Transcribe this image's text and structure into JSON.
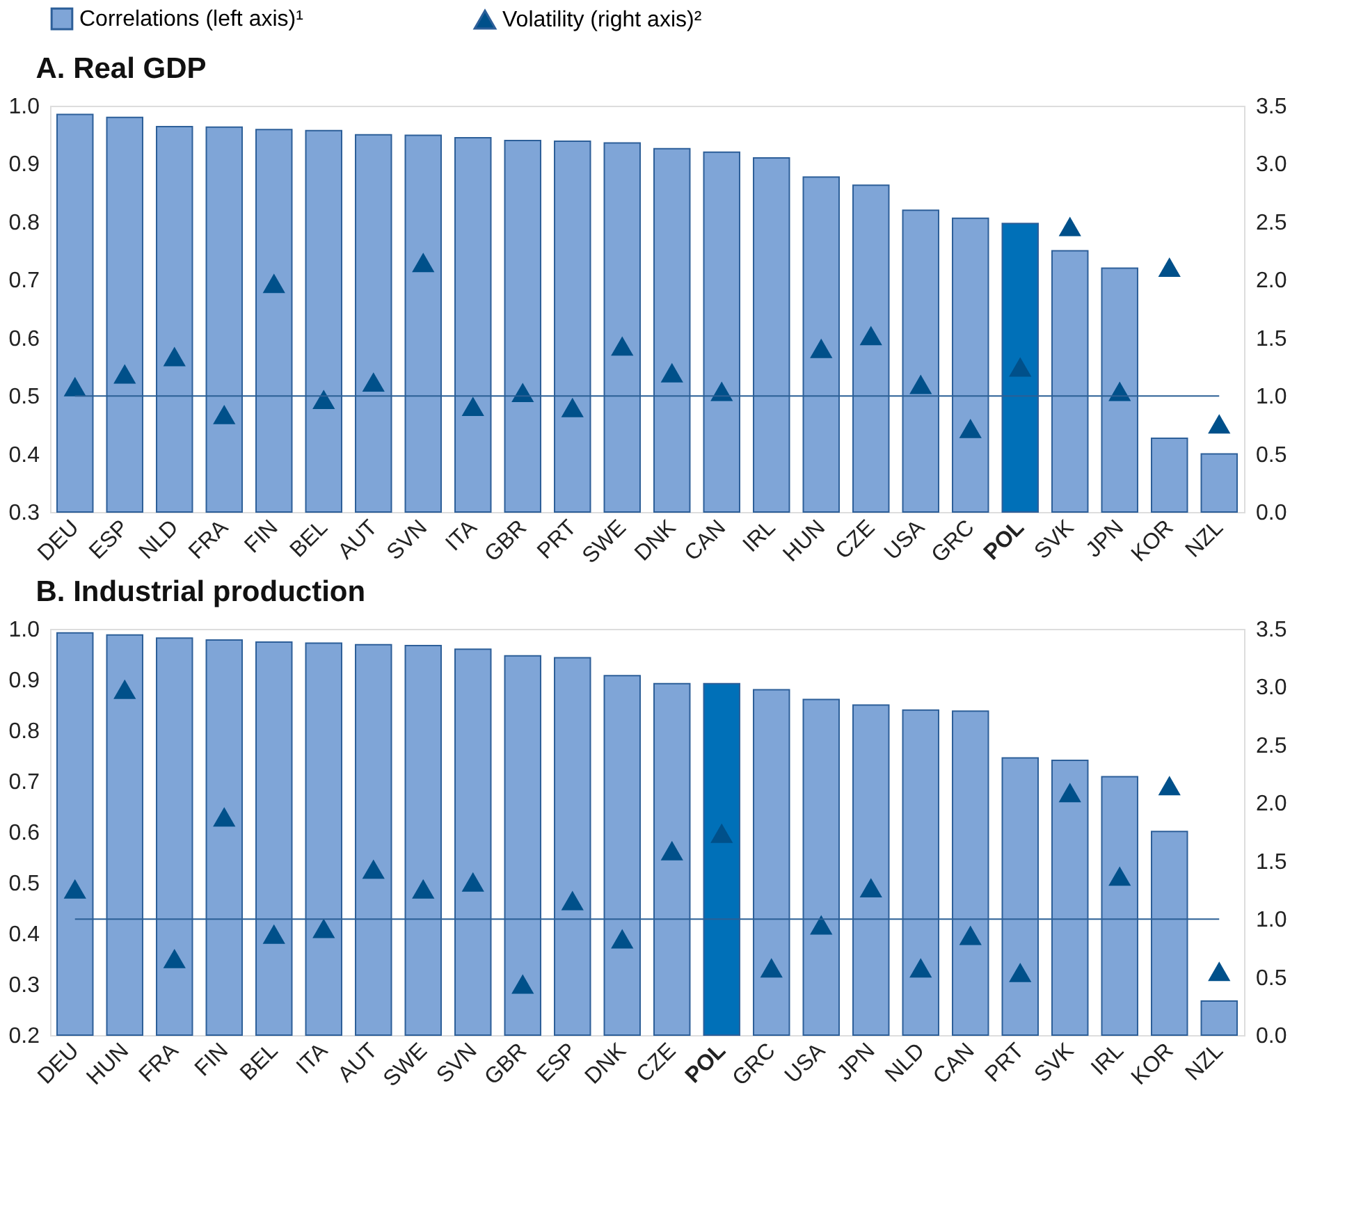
{
  "chart_data": [
    {
      "type": "bar",
      "title": "A.  Real GDP",
      "legend": "top",
      "grid": false,
      "categories": [
        "DEU",
        "ESP",
        "NLD",
        "FRA",
        "FIN",
        "BEL",
        "AUT",
        "SVN",
        "ITA",
        "GBR",
        "PRT",
        "SWE",
        "DNK",
        "CAN",
        "IRL",
        "HUN",
        "CZE",
        "USA",
        "GRC",
        "POL",
        "SVK",
        "JPN",
        "KOR",
        "NZL"
      ],
      "series": [
        {
          "name": "Correlations (left axis)¹",
          "type": "bar",
          "color": "#7fa5d7",
          "colors": [
            "#7fa5d7",
            "#7fa5d7",
            "#7fa5d7",
            "#7fa5d7",
            "#7fa5d7",
            "#7fa5d7",
            "#7fa5d7",
            "#7fa5d7",
            "#7fa5d7",
            "#7fa5d7",
            "#7fa5d7",
            "#7fa5d7",
            "#7fa5d7",
            "#7fa5d7",
            "#7fa5d7",
            "#7fa5d7",
            "#7fa5d7",
            "#7fa5d7",
            "#7fa5d7",
            "#0070b8",
            "#7fa5d7",
            "#7fa5d7",
            "#7fa5d7",
            "#7fa5d7"
          ],
          "values": [
            0.985,
            0.98,
            0.964,
            0.963,
            0.959,
            0.957,
            0.95,
            0.949,
            0.945,
            0.94,
            0.939,
            0.936,
            0.926,
            0.92,
            0.91,
            0.877,
            0.863,
            0.82,
            0.806,
            0.797,
            0.75,
            0.72,
            0.427,
            0.4
          ]
        },
        {
          "name": "Volatility (right axis)²",
          "type": "scatter",
          "marker": "triangle",
          "axis": "y2",
          "color": "#00508a",
          "values": [
            1.08,
            1.19,
            1.34,
            0.84,
            1.97,
            0.97,
            1.12,
            2.15,
            0.91,
            1.03,
            0.9,
            1.43,
            1.2,
            1.04,
            null,
            1.41,
            1.52,
            1.1,
            0.72,
            1.25,
            2.46,
            1.04,
            2.11,
            0.76
          ]
        }
      ],
      "ylim": [
        0.3,
        1.0
      ],
      "yticks": [
        0.3,
        0.4,
        0.5,
        0.6,
        0.7,
        0.8,
        0.9,
        {
          "value": 1.0,
          "label": "1.0"
        }
      ],
      "y2lim": [
        0,
        3.5
      ],
      "y2ticks": [
        {
          "value": 0,
          "label": "0.0"
        },
        0.5,
        {
          "value": 1,
          "label": "1.0"
        },
        1.5,
        {
          "value": 2,
          "label": "2.0"
        },
        2.5,
        {
          "value": 3,
          "label": "3.0"
        },
        3.5
      ],
      "ref_lines": [
        {
          "axis": "y2",
          "value": 1.0,
          "color": "#2b5f95"
        }
      ]
    },
    {
      "type": "bar",
      "title": "B.  Industrial production",
      "legend": false,
      "grid": false,
      "categories": [
        "DEU",
        "HUN",
        "FRA",
        "FIN",
        "BEL",
        "ITA",
        "AUT",
        "SWE",
        "SVN",
        "GBR",
        "ESP",
        "DNK",
        "CZE",
        "POL",
        "GRC",
        "USA",
        "JPN",
        "NLD",
        "CAN",
        "PRT",
        "SVK",
        "IRL",
        "KOR",
        "NZL"
      ],
      "series": [
        {
          "type": "bar",
          "color": "#7fa5d7",
          "colors": [
            "#7fa5d7",
            "#7fa5d7",
            "#7fa5d7",
            "#7fa5d7",
            "#7fa5d7",
            "#7fa5d7",
            "#7fa5d7",
            "#7fa5d7",
            "#7fa5d7",
            "#7fa5d7",
            "#7fa5d7",
            "#7fa5d7",
            "#7fa5d7",
            "#0070b8",
            "#7fa5d7",
            "#7fa5d7",
            "#7fa5d7",
            "#7fa5d7",
            "#7fa5d7",
            "#7fa5d7",
            "#7fa5d7",
            "#7fa5d7",
            "#7fa5d7",
            "#7fa5d7"
          ],
          "values": [
            0.992,
            0.988,
            0.982,
            0.978,
            0.974,
            0.972,
            0.969,
            0.967,
            0.96,
            0.947,
            0.943,
            0.908,
            0.892,
            0.892,
            0.88,
            0.861,
            0.85,
            0.84,
            0.838,
            0.746,
            0.741,
            0.709,
            0.601,
            0.267
          ]
        },
        {
          "type": "scatter",
          "marker": "triangle",
          "axis": "y2",
          "color": "#00508a",
          "values": [
            1.26,
            2.98,
            0.66,
            1.88,
            0.87,
            0.92,
            1.43,
            1.26,
            1.32,
            0.44,
            1.16,
            0.83,
            1.59,
            1.74,
            0.58,
            0.95,
            1.27,
            0.58,
            0.86,
            0.54,
            2.09,
            1.37,
            2.15,
            0.55
          ]
        }
      ],
      "ylim": [
        0.2,
        1.0
      ],
      "yticks": [
        0.2,
        0.3,
        0.4,
        0.5,
        0.6,
        0.7,
        0.8,
        0.9,
        {
          "value": 1.0,
          "label": "1.0"
        }
      ],
      "y2lim": [
        0,
        3.5
      ],
      "y2ticks": [
        {
          "value": 0,
          "label": "0.0"
        },
        0.5,
        {
          "value": 1,
          "label": "1.0"
        },
        1.5,
        {
          "value": 2,
          "label": "2.0"
        },
        2.5,
        {
          "value": 3,
          "label": "3.0"
        },
        3.5
      ],
      "ref_lines": [
        {
          "axis": "y2",
          "value": 1.0,
          "color": "#2b5f95"
        }
      ]
    }
  ]
}
